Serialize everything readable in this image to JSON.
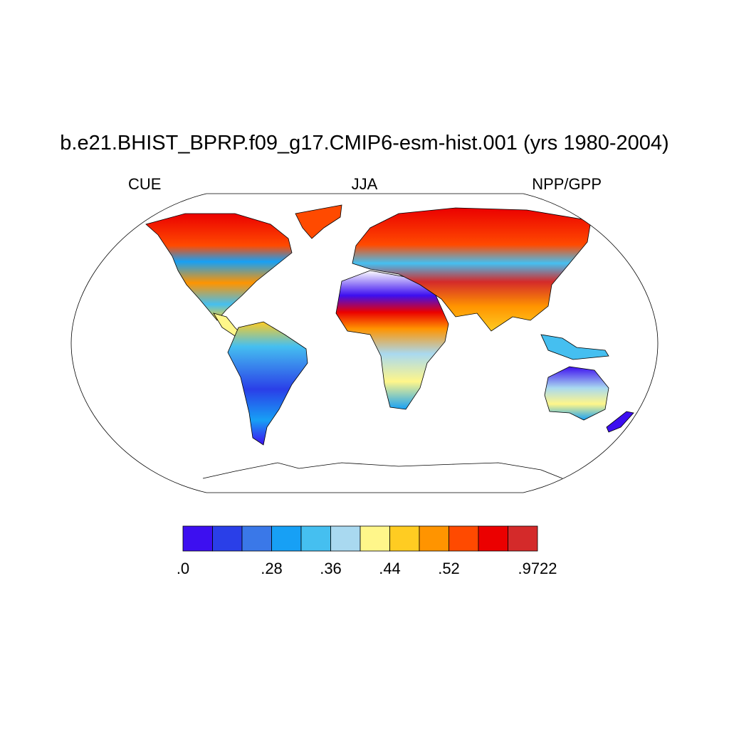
{
  "title": "b.e21.BHIST_BPRP.f09_g17.CMIP6-esm-hist.001 (yrs 1980-2004)",
  "left_label": "CUE",
  "center_label": "JJA",
  "right_label": "NPP/GPP",
  "colorbar": {
    "colors": [
      "#3d0ff0",
      "#2a3fe8",
      "#3a78e8",
      "#17a0f5",
      "#45bff0",
      "#a9d9f0",
      "#fff68a",
      "#ffcc22",
      "#ff9400",
      "#ff4a00",
      "#eb0000",
      "#d42a2a"
    ],
    "levels": [
      0,
      0.2,
      0.24,
      0.28,
      0.32,
      0.36,
      0.4,
      0.44,
      0.48,
      0.52,
      0.56,
      0.6,
      0.9722
    ],
    "ticks": [
      {
        "value": 0,
        "label": ".0"
      },
      {
        "value": 0.28,
        "label": ".28"
      },
      {
        "value": 0.36,
        "label": ".36"
      },
      {
        "value": 0.44,
        "label": ".44"
      },
      {
        "value": 0.52,
        "label": ".52"
      },
      {
        "value": 0.9722,
        "label": ".9722"
      }
    ]
  }
}
